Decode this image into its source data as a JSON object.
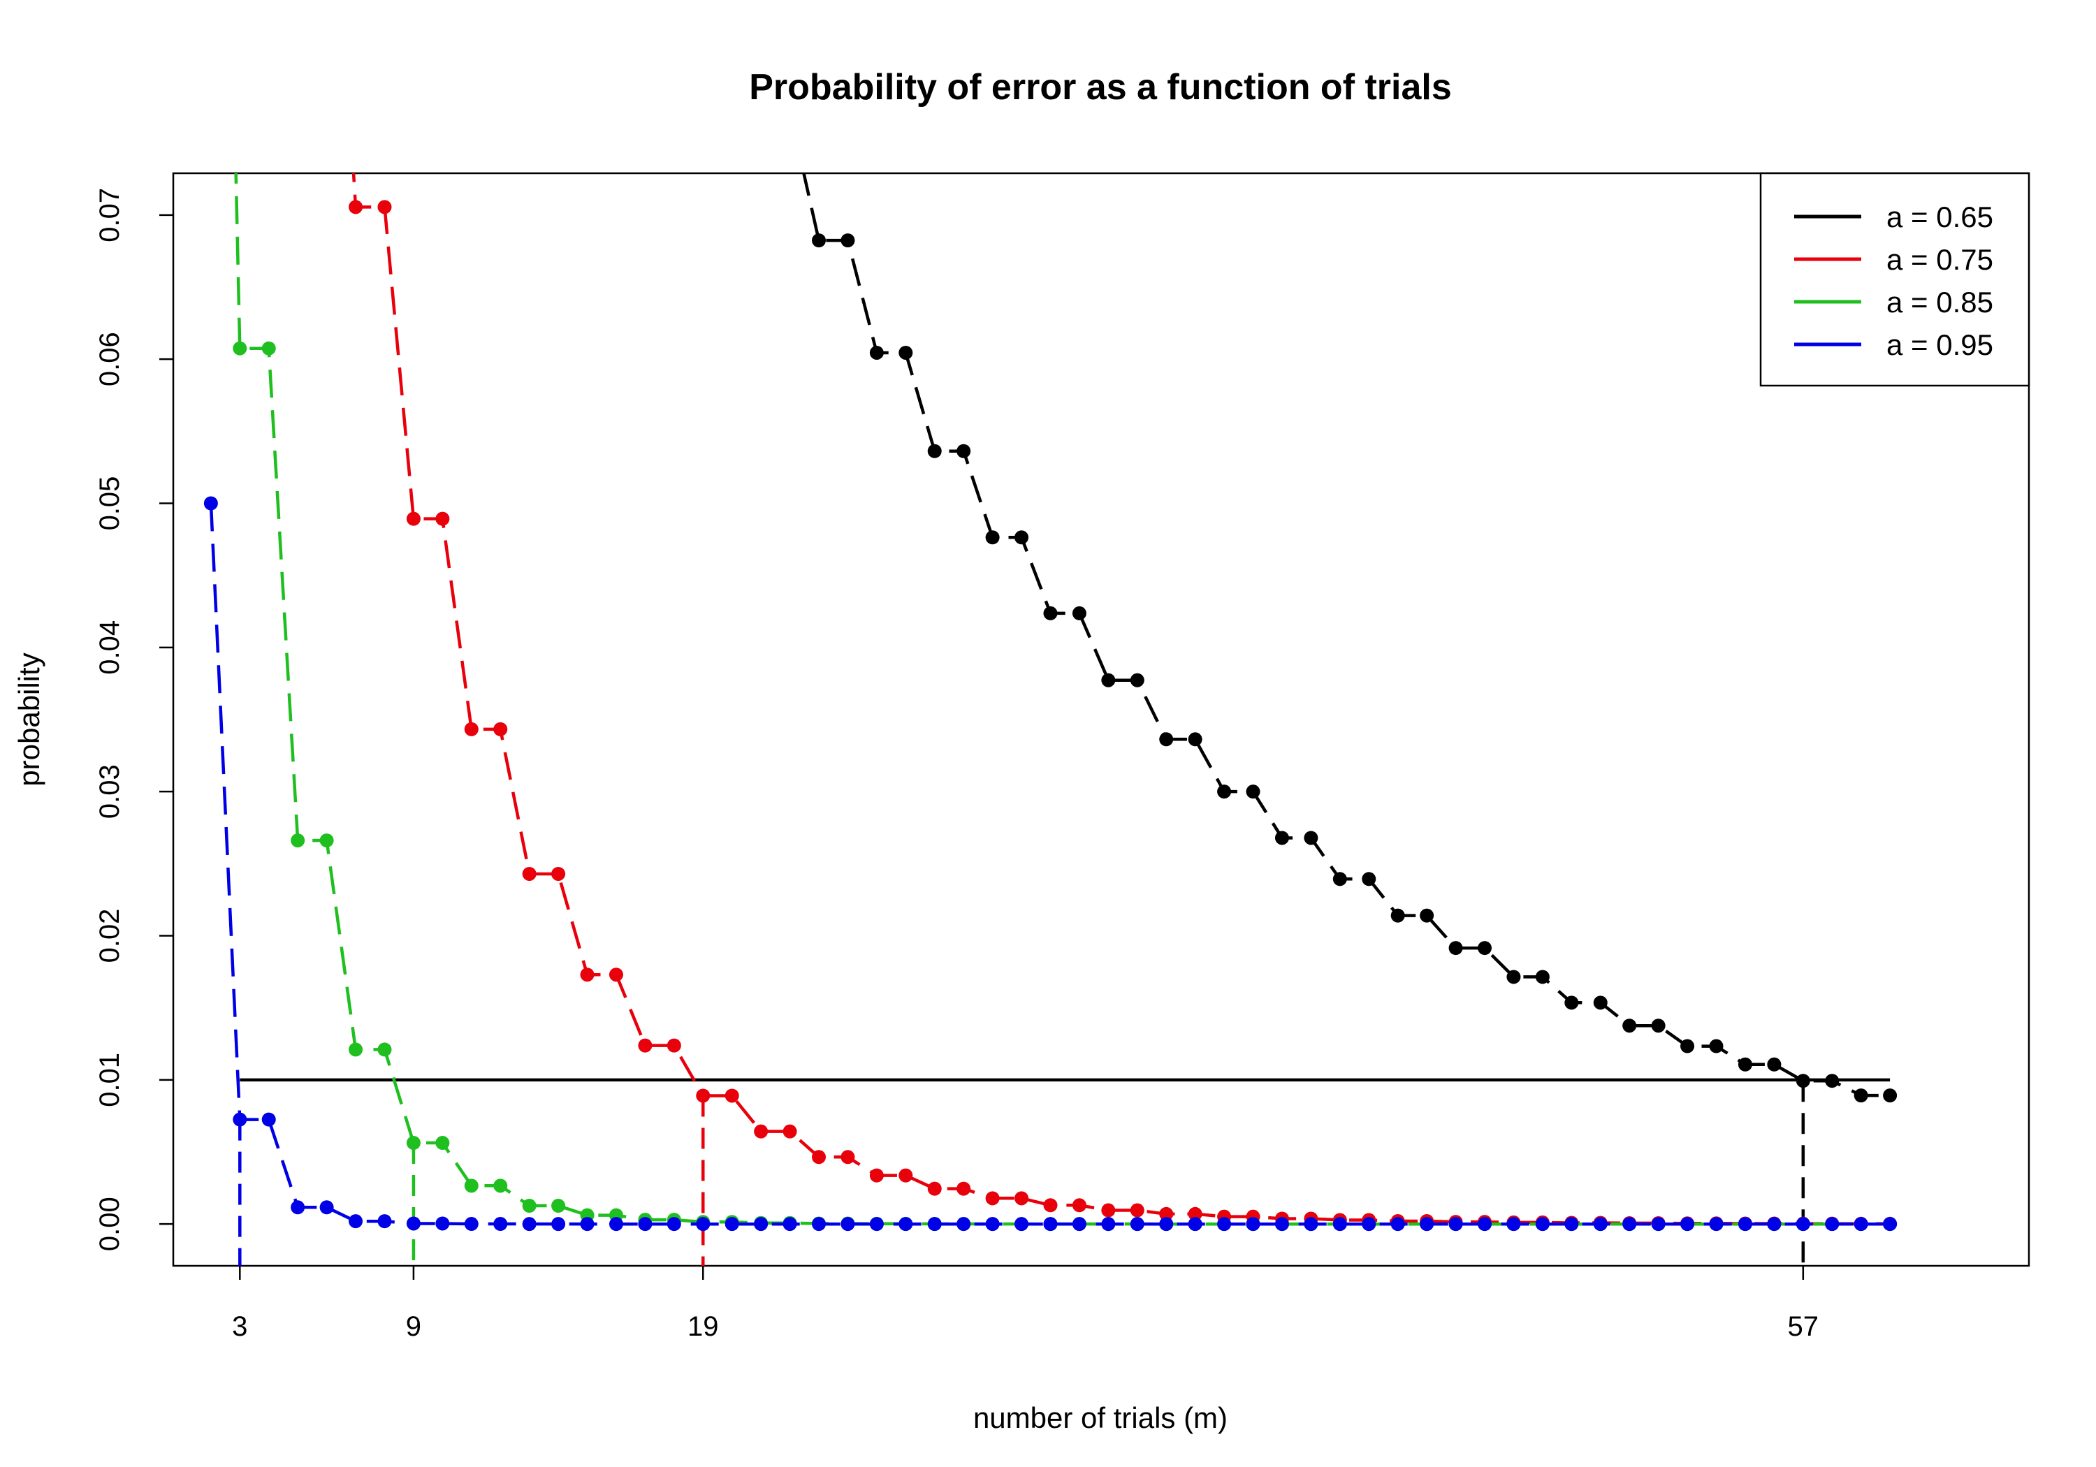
{
  "chart_data": {
    "type": "line",
    "title": "Probability of error as a function of trials",
    "xlabel": "number of trials (m)",
    "ylabel": "probability",
    "xlim": [
      0.7,
      64.8
    ],
    "ylim": [
      -0.0029,
      0.0729
    ],
    "x_ticks": [
      3,
      9,
      19,
      57
    ],
    "y_ticks": [
      0.0,
      0.01,
      0.02,
      0.03,
      0.04,
      0.05,
      0.06,
      0.07
    ],
    "y_tick_labels": [
      "0.00",
      "0.01",
      "0.02",
      "0.03",
      "0.04",
      "0.05",
      "0.06",
      "0.07"
    ],
    "threshold": {
      "y": 0.01,
      "x_start": 3,
      "x_end": 60,
      "color": "#000000"
    },
    "x_range": [
      2,
      60
    ],
    "legend": {
      "position": "top-right",
      "entries": [
        "a = 0.65",
        "a = 0.75",
        "a = 0.85",
        "a = 0.95"
      ]
    },
    "series": [
      {
        "name": "a = 0.65",
        "a": 0.65,
        "color": "#000000",
        "marker_x": 57
      },
      {
        "name": "a = 0.75",
        "a": 0.75,
        "color": "#e8000b",
        "marker_x": 19
      },
      {
        "name": "a = 0.85",
        "a": 0.85,
        "color": "#1fbf1f",
        "marker_x": 9
      },
      {
        "name": "a = 0.95",
        "a": 0.95,
        "color": "#0000e6",
        "marker_x": 3
      }
    ]
  }
}
